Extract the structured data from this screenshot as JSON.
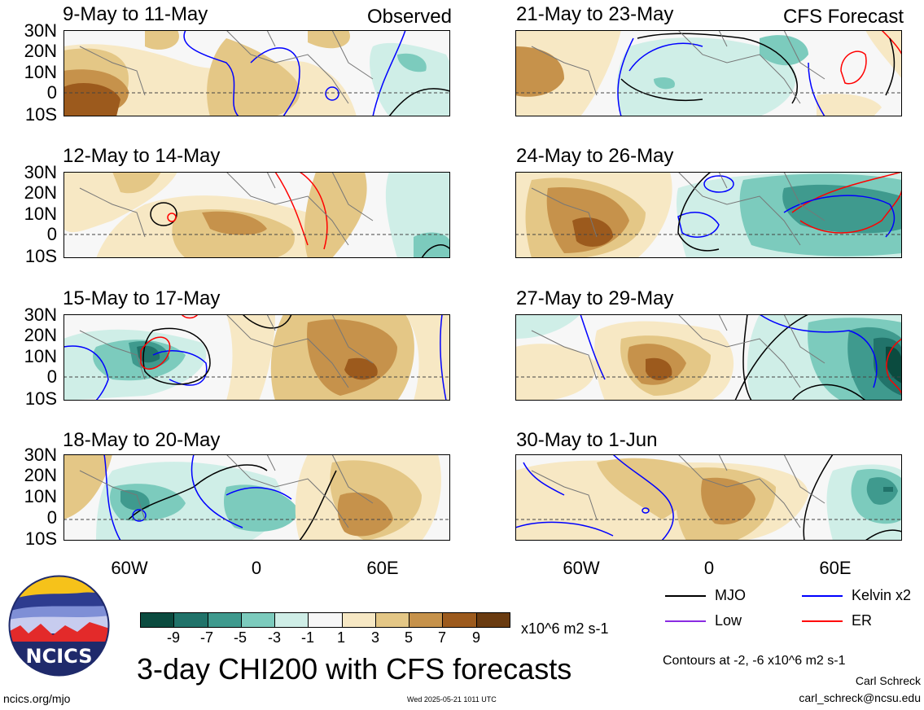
{
  "panels": [
    {
      "title": "9-May to 11-May",
      "corner": "Observed"
    },
    {
      "title": "21-May to 23-May",
      "corner": "CFS Forecast"
    },
    {
      "title": "12-May to 14-May",
      "corner": ""
    },
    {
      "title": "24-May to 26-May",
      "corner": ""
    },
    {
      "title": "15-May to 17-May",
      "corner": ""
    },
    {
      "title": "27-May to 29-May",
      "corner": ""
    },
    {
      "title": "18-May to 20-May",
      "corner": ""
    },
    {
      "title": "30-May to 1-Jun",
      "corner": ""
    }
  ],
  "lat_labels": [
    "30N",
    "20N",
    "10N",
    "0",
    "10S"
  ],
  "lon_labels": [
    "60W",
    "0",
    "60E"
  ],
  "colorbar": {
    "labels": [
      "-9",
      "-7",
      "-5",
      "-3",
      "-1",
      "1",
      "3",
      "5",
      "7",
      "9"
    ],
    "units": "x10^6 m2 s-1",
    "colors": [
      "#0b4b3f",
      "#21736a",
      "#3f9a8e",
      "#7ccbbd",
      "#cfeee7",
      "#f7f7f7",
      "#f7e8c4",
      "#e4c786",
      "#c6924b",
      "#9c5a1d",
      "#6a3b10"
    ]
  },
  "main_title": "3-day CHI200 with CFS forecasts",
  "legend": [
    {
      "label": "MJO",
      "color": "#000000"
    },
    {
      "label": "Kelvin x2",
      "color": "#0000ff"
    },
    {
      "label": "Low",
      "color": "#8a2be2"
    },
    {
      "label": "ER",
      "color": "#ff0000"
    }
  ],
  "contour_note": "Contours at -2, -6 x10^6 m2 s-1",
  "author": "Carl Schreck",
  "email": "carl_schreck@ncsu.edu",
  "url": "ncics.org/mjo",
  "timestamp": "Wed 2025-05-21 1011 UTC",
  "logo_text": "NCICS"
}
